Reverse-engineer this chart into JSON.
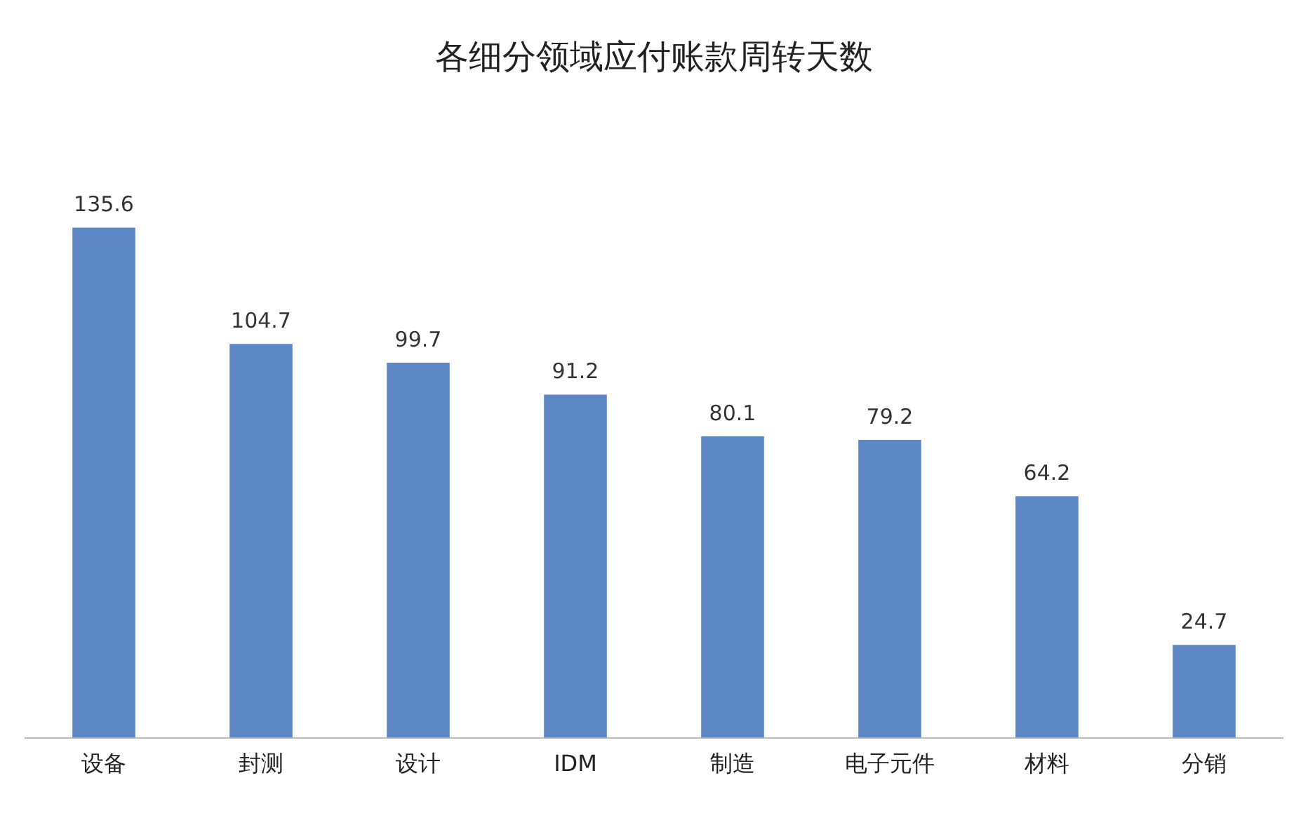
{
  "chart_data": {
    "type": "bar",
    "title": "各细分领域应付账款周转天数",
    "categories": [
      "设备",
      "封测",
      "设计",
      "IDM",
      "制造",
      "电子元件",
      "材料",
      "分销"
    ],
    "values": [
      135.6,
      104.7,
      99.7,
      91.2,
      80.1,
      79.2,
      64.2,
      24.7
    ],
    "color": "#5b87c4",
    "data_labels": true,
    "grid": false,
    "legend": false
  }
}
